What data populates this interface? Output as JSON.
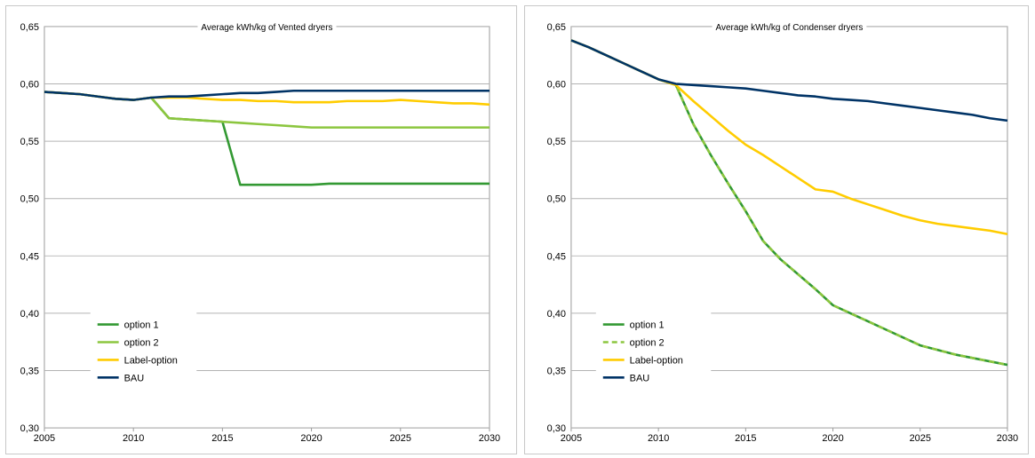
{
  "chart_data": [
    {
      "type": "line",
      "title": "Average kWh/kg of Vented dryers",
      "xlim": [
        2005,
        2030
      ],
      "ylim": [
        0.3,
        0.65
      ],
      "xticks": [
        "2005",
        "2010",
        "2015",
        "2020",
        "2025",
        "2030"
      ],
      "yticks": [
        "0,30",
        "0,35",
        "0,40",
        "0,45",
        "0,50",
        "0,55",
        "0,60",
        "0,65"
      ],
      "grid": true,
      "legend_position": "lower-left",
      "series": [
        {
          "name": "option 1",
          "color": "#339933",
          "dash": false,
          "x": [
            2005,
            2006,
            2007,
            2008,
            2009,
            2010,
            2011,
            2012,
            2013,
            2014,
            2015,
            2016,
            2017,
            2018,
            2019,
            2020,
            2021,
            2022,
            2023,
            2024,
            2025,
            2026,
            2027,
            2028,
            2029,
            2030
          ],
          "values": [
            0.593,
            0.592,
            0.591,
            0.589,
            0.587,
            0.586,
            0.588,
            0.57,
            0.569,
            0.568,
            0.567,
            0.512,
            0.512,
            0.512,
            0.512,
            0.512,
            0.513,
            0.513,
            0.513,
            0.513,
            0.513,
            0.513,
            0.513,
            0.513,
            0.513,
            0.513
          ]
        },
        {
          "name": "option 2",
          "color": "#8cc63f",
          "dash": false,
          "x": [
            2005,
            2006,
            2007,
            2008,
            2009,
            2010,
            2011,
            2012,
            2013,
            2014,
            2015,
            2016,
            2017,
            2018,
            2019,
            2020,
            2021,
            2022,
            2023,
            2024,
            2025,
            2026,
            2027,
            2028,
            2029,
            2030
          ],
          "values": [
            0.593,
            0.592,
            0.591,
            0.589,
            0.587,
            0.586,
            0.588,
            0.57,
            0.569,
            0.568,
            0.567,
            0.566,
            0.565,
            0.564,
            0.563,
            0.562,
            0.562,
            0.562,
            0.562,
            0.562,
            0.562,
            0.562,
            0.562,
            0.562,
            0.562,
            0.562
          ]
        },
        {
          "name": "Label-option",
          "color": "#ffcc00",
          "dash": false,
          "x": [
            2005,
            2006,
            2007,
            2008,
            2009,
            2010,
            2011,
            2012,
            2013,
            2014,
            2015,
            2016,
            2017,
            2018,
            2019,
            2020,
            2021,
            2022,
            2023,
            2024,
            2025,
            2026,
            2027,
            2028,
            2029,
            2030
          ],
          "values": [
            0.593,
            0.592,
            0.591,
            0.589,
            0.587,
            0.586,
            0.588,
            0.588,
            0.588,
            0.587,
            0.586,
            0.586,
            0.585,
            0.585,
            0.584,
            0.584,
            0.584,
            0.585,
            0.585,
            0.585,
            0.586,
            0.585,
            0.584,
            0.583,
            0.583,
            0.582
          ]
        },
        {
          "name": "BAU",
          "color": "#003366",
          "dash": false,
          "x": [
            2005,
            2006,
            2007,
            2008,
            2009,
            2010,
            2011,
            2012,
            2013,
            2014,
            2015,
            2016,
            2017,
            2018,
            2019,
            2020,
            2021,
            2022,
            2023,
            2024,
            2025,
            2026,
            2027,
            2028,
            2029,
            2030
          ],
          "values": [
            0.593,
            0.592,
            0.591,
            0.589,
            0.587,
            0.586,
            0.588,
            0.589,
            0.589,
            0.59,
            0.591,
            0.592,
            0.592,
            0.593,
            0.594,
            0.594,
            0.594,
            0.594,
            0.594,
            0.594,
            0.594,
            0.594,
            0.594,
            0.594,
            0.594,
            0.594
          ]
        }
      ]
    },
    {
      "type": "line",
      "title": "Average kWh/kg of Condenser dryers",
      "xlim": [
        2005,
        2030
      ],
      "ylim": [
        0.3,
        0.65
      ],
      "xticks": [
        "2005",
        "2010",
        "2015",
        "2020",
        "2025",
        "2030"
      ],
      "yticks": [
        "0,30",
        "0,35",
        "0,40",
        "0,45",
        "0,50",
        "0,55",
        "0,60",
        "0,65"
      ],
      "grid": true,
      "legend_position": "lower-left",
      "series": [
        {
          "name": "option 1",
          "color": "#339933",
          "dash": false,
          "x": [
            2005,
            2006,
            2007,
            2008,
            2009,
            2010,
            2011,
            2012,
            2013,
            2014,
            2015,
            2016,
            2017,
            2018,
            2019,
            2020,
            2021,
            2022,
            2023,
            2024,
            2025,
            2026,
            2027,
            2028,
            2029,
            2030
          ],
          "values": [
            0.638,
            0.632,
            0.625,
            0.618,
            0.611,
            0.604,
            0.599,
            0.565,
            0.538,
            0.513,
            0.489,
            0.463,
            0.447,
            0.434,
            0.421,
            0.407,
            0.4,
            0.393,
            0.386,
            0.379,
            0.372,
            0.368,
            0.364,
            0.361,
            0.358,
            0.355
          ]
        },
        {
          "name": "option 2",
          "color": "#8cc63f",
          "dash": true,
          "x": [
            2005,
            2006,
            2007,
            2008,
            2009,
            2010,
            2011,
            2012,
            2013,
            2014,
            2015,
            2016,
            2017,
            2018,
            2019,
            2020,
            2021,
            2022,
            2023,
            2024,
            2025,
            2026,
            2027,
            2028,
            2029,
            2030
          ],
          "values": [
            0.638,
            0.632,
            0.625,
            0.618,
            0.611,
            0.604,
            0.599,
            0.565,
            0.538,
            0.513,
            0.489,
            0.463,
            0.447,
            0.434,
            0.421,
            0.407,
            0.4,
            0.393,
            0.386,
            0.379,
            0.372,
            0.368,
            0.364,
            0.361,
            0.358,
            0.355
          ]
        },
        {
          "name": "Label-option",
          "color": "#ffcc00",
          "dash": false,
          "x": [
            2005,
            2006,
            2007,
            2008,
            2009,
            2010,
            2011,
            2012,
            2013,
            2014,
            2015,
            2016,
            2017,
            2018,
            2019,
            2020,
            2021,
            2022,
            2023,
            2024,
            2025,
            2026,
            2027,
            2028,
            2029,
            2030
          ],
          "values": [
            0.638,
            0.632,
            0.625,
            0.618,
            0.611,
            0.604,
            0.599,
            0.585,
            0.572,
            0.559,
            0.547,
            0.538,
            0.528,
            0.518,
            0.508,
            0.506,
            0.5,
            0.495,
            0.49,
            0.485,
            0.481,
            0.478,
            0.476,
            0.474,
            0.472,
            0.469
          ]
        },
        {
          "name": "BAU",
          "color": "#003366",
          "dash": false,
          "x": [
            2005,
            2006,
            2007,
            2008,
            2009,
            2010,
            2011,
            2012,
            2013,
            2014,
            2015,
            2016,
            2017,
            2018,
            2019,
            2020,
            2021,
            2022,
            2023,
            2024,
            2025,
            2026,
            2027,
            2028,
            2029,
            2030
          ],
          "values": [
            0.638,
            0.632,
            0.625,
            0.618,
            0.611,
            0.604,
            0.6,
            0.599,
            0.598,
            0.597,
            0.596,
            0.594,
            0.592,
            0.59,
            0.589,
            0.587,
            0.586,
            0.585,
            0.583,
            0.581,
            0.579,
            0.577,
            0.575,
            0.573,
            0.57,
            0.568
          ]
        }
      ]
    }
  ]
}
